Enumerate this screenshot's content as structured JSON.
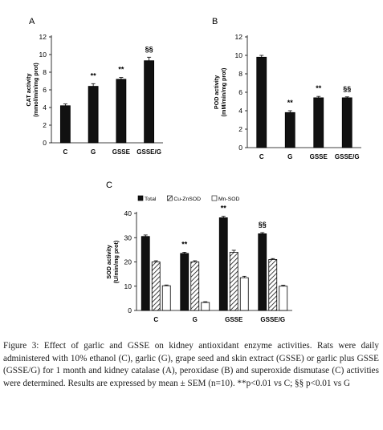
{
  "colors": {
    "bar_black": "#111111",
    "axis": "#000000"
  },
  "chart_data": [
    {
      "panel": "A",
      "type": "bar",
      "categories": [
        "C",
        "G",
        "GSSE",
        "GSSE/G"
      ],
      "values": [
        4.2,
        6.4,
        7.2,
        9.3
      ],
      "errors": [
        0.2,
        0.3,
        0.2,
        0.4
      ],
      "annotations": [
        "",
        "**",
        "**",
        "§§"
      ],
      "ylabel_line1": "CAT activity",
      "ylabel_line2": "(mmol/min/mg prot)",
      "ylim": [
        0,
        12
      ],
      "yticks": [
        0,
        2,
        4,
        6,
        8,
        10,
        12
      ],
      "grid": false
    },
    {
      "panel": "B",
      "type": "bar",
      "categories": [
        "C",
        "G",
        "GSSE",
        "GSSE/G"
      ],
      "values": [
        9.8,
        3.8,
        5.4,
        5.4
      ],
      "errors": [
        0.2,
        0.2,
        0.15,
        0.1
      ],
      "annotations": [
        "",
        "**",
        "**",
        "§§"
      ],
      "ylabel_line1": "POD activity",
      "ylabel_line2": "(mM/min/mg prot)",
      "ylim": [
        0,
        12
      ],
      "yticks": [
        0,
        2,
        4,
        6,
        8,
        10,
        12
      ],
      "grid": false
    },
    {
      "panel": "C",
      "type": "bar",
      "categories": [
        "C",
        "G",
        "GSSE",
        "GSSE/G"
      ],
      "series": [
        {
          "name": "Total",
          "pattern": "solid",
          "values": [
            30.5,
            23.5,
            38.2,
            31.6
          ],
          "errors": [
            0.6,
            0.5,
            0.6,
            0.5
          ]
        },
        {
          "name": "Cu-ZnSOD",
          "pattern": "hatch",
          "values": [
            20.0,
            20.0,
            24.0,
            21.0
          ],
          "errors": [
            0.5,
            0.5,
            0.8,
            0.4
          ]
        },
        {
          "name": "Mn-SOD",
          "pattern": "white",
          "values": [
            10.2,
            3.3,
            13.5,
            10.0
          ],
          "errors": [
            0.3,
            0.3,
            0.6,
            0.4
          ]
        }
      ],
      "annotations": [
        "",
        "**",
        "**",
        "§§"
      ],
      "ylabel_line1": "SOD activity",
      "ylabel_line2": "(U/min/mg prot)",
      "ylim": [
        0,
        40
      ],
      "yticks": [
        0,
        10,
        20,
        30,
        40
      ],
      "legend_position": "top",
      "grid": false
    }
  ],
  "caption": "Figure 3: Effect of garlic and GSSE on kidney antioxidant enzyme activities. Rats were daily administered with 10% ethanol (C), garlic (G), grape seed and skin extract (GSSE) or garlic plus GSSE (GSSE/G) for 1 month and kidney catalase (A), peroxidase (B) and superoxide dismutase (C) activities were determined. Results are expressed by mean ± SEM (n=10). **p<0.01 vs C; §§ p<0.01 vs G"
}
